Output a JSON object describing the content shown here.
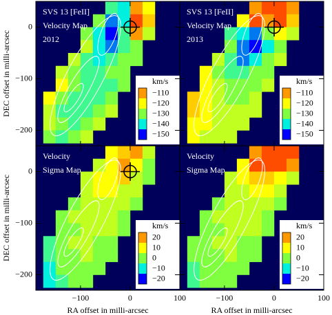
{
  "chart_data": [
    {
      "type": "heatmap",
      "title": [
        "SVS 13 [FeII]",
        "Velocity Map",
        "2012"
      ],
      "ylabel": "DEC offset in milli-arcsec",
      "x": [
        -162.5,
        -137.5,
        -112.5,
        -87.5,
        -62.5,
        -37.5,
        -12.5,
        12.5,
        37.5
      ],
      "y": [
        37.5,
        12.5,
        -12.5,
        -37.5,
        -62.5,
        -87.5,
        -112.5,
        -137.5,
        -162.5,
        -187.5,
        -212.5
      ],
      "values": [
        [
          null,
          null,
          null,
          null,
          null,
          -135,
          -140,
          -110,
          -120
        ],
        [
          null,
          null,
          null,
          null,
          -130,
          -145,
          -140,
          -105,
          -115
        ],
        [
          null,
          null,
          null,
          -130,
          -140,
          -150,
          -135,
          -110,
          -125
        ],
        [
          null,
          null,
          null,
          -125,
          -140,
          -145,
          -135,
          -130,
          null
        ],
        [
          null,
          null,
          -125,
          -135,
          -140,
          -135,
          -130,
          -130,
          null
        ],
        [
          null,
          -125,
          -130,
          -135,
          -135,
          -130,
          -130,
          null,
          null
        ],
        [
          null,
          -120,
          -130,
          -135,
          -135,
          -135,
          -130,
          null,
          null
        ],
        [
          -120,
          -130,
          -135,
          -135,
          -135,
          -130,
          null,
          null,
          null
        ],
        [
          -125,
          -135,
          -135,
          -135,
          -130,
          -125,
          null,
          null,
          null
        ],
        [
          -125,
          -130,
          -135,
          -130,
          -125,
          null,
          null,
          null,
          null
        ],
        [
          -130,
          -135,
          -130,
          -125,
          null,
          null,
          null,
          null,
          null
        ]
      ],
      "xlim": [
        -190,
        100
      ],
      "ylim": [
        -230,
        50
      ],
      "yticks": [
        0,
        {
          "value": -100,
          "label": "−100"
        },
        {
          "value": -200,
          "label": "−200"
        }
      ],
      "colorbar": {
        "label": "km/s",
        "ticks": [
          {
            "value": -110,
            "label": "−110"
          },
          {
            "value": -120,
            "label": "−120"
          },
          {
            "value": -130,
            "label": "−130"
          },
          {
            "value": -140,
            "label": "−140"
          },
          {
            "value": -150,
            "label": "−150"
          }
        ],
        "colors": [
          "#ff9900",
          "#ffff00",
          "#80ff40",
          "#00f0e0",
          "#0000ff"
        ]
      },
      "over_color": "#ff0000",
      "background": "#00005a"
    },
    {
      "type": "heatmap",
      "title": [
        "SVS 13 [FeII]",
        "Velocity Map",
        "2013"
      ],
      "x": [
        -162.5,
        -137.5,
        -112.5,
        -87.5,
        -62.5,
        -37.5,
        -12.5,
        12.5,
        37.5
      ],
      "y": [
        37.5,
        12.5,
        -12.5,
        -37.5,
        -62.5,
        -87.5,
        -112.5,
        -137.5,
        -162.5,
        -187.5,
        -212.5
      ],
      "values": [
        [
          null,
          null,
          null,
          null,
          null,
          -110,
          -105,
          -105,
          -110
        ],
        [
          null,
          null,
          null,
          null,
          -120,
          -105,
          -110,
          -105,
          -115
        ],
        [
          null,
          null,
          null,
          -135,
          -140,
          -145,
          -130,
          -120,
          -125
        ],
        [
          null,
          null,
          null,
          -130,
          -145,
          -150,
          -140,
          -130,
          null
        ],
        [
          null,
          null,
          -125,
          -135,
          -145,
          -140,
          -130,
          -125,
          null
        ],
        [
          null,
          -120,
          -130,
          -135,
          -135,
          -130,
          -130,
          null,
          null
        ],
        [
          null,
          -120,
          -125,
          -130,
          -130,
          -130,
          -125,
          null,
          null
        ],
        [
          -115,
          -120,
          -125,
          -130,
          -130,
          -125,
          null,
          null,
          null
        ],
        [
          -115,
          -120,
          -125,
          -125,
          -125,
          -125,
          null,
          null,
          null
        ],
        [
          -120,
          -120,
          -125,
          -125,
          -125,
          null,
          null,
          null,
          null
        ],
        [
          -120,
          -125,
          -125,
          -125,
          null,
          null,
          null,
          null,
          null
        ]
      ],
      "xlim": [
        -190,
        100
      ],
      "ylim": [
        -230,
        50
      ],
      "colorbar": {
        "label": "km/s",
        "ticks": [
          {
            "value": -110,
            "label": "−110"
          },
          {
            "value": -120,
            "label": "−120"
          },
          {
            "value": -130,
            "label": "−130"
          },
          {
            "value": -140,
            "label": "−140"
          },
          {
            "value": -150,
            "label": "−150"
          }
        ],
        "colors": [
          "#ff9900",
          "#ffff00",
          "#80ff40",
          "#00f0e0",
          "#0000ff"
        ]
      },
      "over_color": "#ff0000",
      "background": "#00005a"
    },
    {
      "type": "heatmap",
      "title": [
        "Velocity",
        "Sigma Map"
      ],
      "ylabel": "DEC offset in milli-arcsec",
      "xlabel": "RA offset in milli-arcsec",
      "x": [
        -162.5,
        -137.5,
        -112.5,
        -87.5,
        -62.5,
        -37.5,
        -12.5,
        12.5,
        37.5
      ],
      "y": [
        37.5,
        12.5,
        -12.5,
        -37.5,
        -62.5,
        -87.5,
        -112.5,
        -137.5,
        -162.5,
        -187.5,
        -212.5
      ],
      "values": [
        [
          null,
          null,
          null,
          null,
          null,
          10,
          15,
          20,
          5
        ],
        [
          null,
          null,
          null,
          null,
          5,
          10,
          20,
          10,
          0
        ],
        [
          null,
          null,
          null,
          5,
          10,
          10,
          15,
          5,
          0
        ],
        [
          null,
          null,
          null,
          5,
          10,
          10,
          5,
          5,
          null
        ],
        [
          null,
          null,
          0,
          5,
          5,
          5,
          5,
          0,
          null
        ],
        [
          null,
          0,
          5,
          5,
          5,
          5,
          0,
          null,
          null
        ],
        [
          null,
          0,
          0,
          5,
          5,
          5,
          0,
          null,
          null
        ],
        [
          -5,
          0,
          5,
          5,
          0,
          0,
          null,
          null,
          null
        ],
        [
          -5,
          0,
          0,
          5,
          0,
          0,
          null,
          null,
          null
        ],
        [
          -10,
          0,
          0,
          0,
          0,
          null,
          null,
          null,
          null
        ],
        [
          -10,
          -5,
          0,
          0,
          null,
          null,
          null,
          null,
          null
        ]
      ],
      "xlim": [
        -190,
        100
      ],
      "ylim": [
        -230,
        50
      ],
      "xticks": [
        {
          "value": -100,
          "label": "−100"
        },
        0,
        100
      ],
      "yticks": [
        0,
        {
          "value": -100,
          "label": "−100"
        },
        {
          "value": -200,
          "label": "−200"
        }
      ],
      "colorbar": {
        "label": "km/s",
        "ticks": [
          20,
          10,
          0,
          {
            "value": -10,
            "label": "−10"
          },
          {
            "value": -20,
            "label": "−20"
          }
        ],
        "colors": [
          "#ff9900",
          "#ffff00",
          "#80ff40",
          "#00f0e0",
          "#0000ff"
        ]
      },
      "over_color": "#ff0000",
      "background": "#00005a"
    },
    {
      "type": "heatmap",
      "title": [
        "Velocity",
        "Sigma Map"
      ],
      "xlabel": "RA offset in milli-arcsec",
      "x": [
        -162.5,
        -137.5,
        -112.5,
        -87.5,
        -62.5,
        -37.5,
        -12.5,
        12.5,
        37.5
      ],
      "y": [
        37.5,
        12.5,
        -12.5,
        -37.5,
        -62.5,
        -87.5,
        -112.5,
        -137.5,
        -162.5,
        -187.5,
        -212.5
      ],
      "values": [
        [
          null,
          null,
          null,
          null,
          null,
          20,
          25,
          25,
          25
        ],
        [
          null,
          null,
          null,
          null,
          10,
          25,
          25,
          25,
          20
        ],
        [
          null,
          null,
          null,
          5,
          10,
          15,
          15,
          10,
          5
        ],
        [
          null,
          null,
          null,
          5,
          5,
          10,
          10,
          5,
          null
        ],
        [
          null,
          null,
          0,
          5,
          5,
          5,
          5,
          0,
          null
        ],
        [
          null,
          0,
          5,
          5,
          5,
          5,
          0,
          null,
          null
        ],
        [
          null,
          0,
          0,
          5,
          5,
          5,
          0,
          null,
          null
        ],
        [
          0,
          0,
          5,
          5,
          0,
          0,
          null,
          null,
          null
        ],
        [
          0,
          0,
          0,
          5,
          0,
          0,
          null,
          null,
          null
        ],
        [
          -5,
          0,
          0,
          0,
          0,
          null,
          null,
          null,
          null
        ],
        [
          -5,
          0,
          0,
          0,
          null,
          null,
          null,
          null,
          null
        ]
      ],
      "xlim": [
        -190,
        100
      ],
      "ylim": [
        -230,
        50
      ],
      "xticks": [
        {
          "value": -100,
          "label": "−100"
        },
        0,
        100
      ],
      "colorbar": {
        "label": "km/s",
        "ticks": [
          20,
          10,
          0,
          {
            "value": -10,
            "label": "−10"
          },
          {
            "value": -20,
            "label": "−20"
          }
        ],
        "colors": [
          "#ff9900",
          "#ffff00",
          "#80ff40",
          "#00f0e0",
          "#0000ff"
        ]
      },
      "over_color": "#ff0000",
      "background": "#00005a"
    }
  ]
}
